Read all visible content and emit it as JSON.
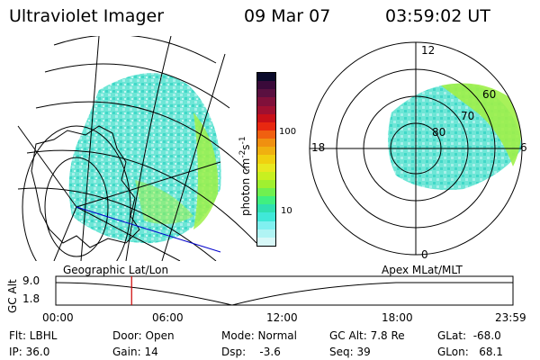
{
  "header": {
    "instrument": "Ultraviolet Imager",
    "date": "09 Mar 07",
    "time": "03:59:02 UT"
  },
  "colorbar": {
    "unit_label": "photon cm",
    "exp1": "-2",
    "mid": "s",
    "exp2": "-1",
    "tick_100": "100",
    "tick_10": "10",
    "colors": [
      "#0a0a2a",
      "#3a0a3a",
      "#5a1040",
      "#80103a",
      "#a01030",
      "#c81018",
      "#e82810",
      "#f06010",
      "#f09010",
      "#f0b010",
      "#f0d010",
      "#e8e820",
      "#c8f020",
      "#a0f030",
      "#70f050",
      "#40f080",
      "#30e0b0",
      "#40e8d8",
      "#80f0f0",
      "#b0f4f4",
      "#d8f8f8"
    ]
  },
  "polar_plot": {
    "label_12": "12",
    "label_18": "18",
    "label_6": "6",
    "label_0": "0",
    "label_60": "60",
    "label_70": "70",
    "label_80": "80"
  },
  "timeline": {
    "left_title": "Geographic Lat/Lon",
    "right_title": "Apex MLat/MLT",
    "y_axis_label": "GC Alt",
    "y_top": "9.0",
    "y_bottom": "1.8",
    "ticks": [
      "00:00",
      "06:00",
      "12:00",
      "18:00",
      "23:59"
    ],
    "marker_hours": 3.98,
    "marker_color": "#cc0000"
  },
  "status": {
    "flt": "Flt: LBHL",
    "ip": "IP: 36.0",
    "door": "Door: Open",
    "gain": "Gain: 14",
    "mode": "Mode: Normal",
    "dsp": "Dsp:    -3.6",
    "gc_alt": "GC Alt: 7.8 Re",
    "seq": "Seq: 39",
    "glat": "GLat:  -68.0",
    "glon": "GLon:   68.1"
  }
}
